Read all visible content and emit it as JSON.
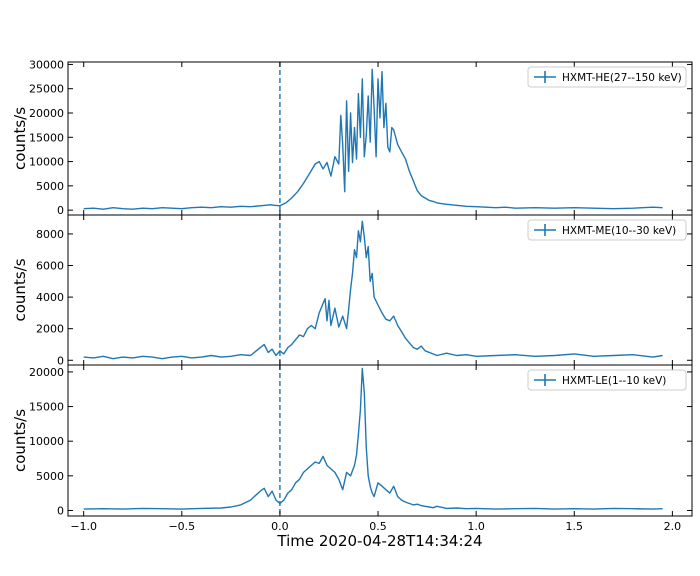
{
  "chart_data": {
    "type": "line",
    "xlabel": "Time 2020-04-28T14:34:24",
    "xlim": [
      -1.08,
      2.1
    ],
    "xticks": [
      "−1.0",
      "−0.5",
      "0.0",
      "0.5",
      "1.0",
      "1.5",
      "2.0"
    ],
    "xtick_values": [
      -1.0,
      -0.5,
      0.0,
      0.5,
      1.0,
      1.5,
      2.0
    ],
    "trigger_line_x": 0.0,
    "color": "#1f77b4",
    "panels": [
      {
        "ylabel": "counts/s",
        "ylim": [
          -1000,
          30500
        ],
        "yticks": [
          0,
          5000,
          10000,
          15000,
          20000,
          25000,
          30000
        ],
        "legend": "HXMT-HE(27--150 keV)",
        "legend_position": "upper right",
        "series": {
          "x": [
            -1.0,
            -0.95,
            -0.9,
            -0.85,
            -0.8,
            -0.75,
            -0.7,
            -0.65,
            -0.6,
            -0.55,
            -0.5,
            -0.45,
            -0.4,
            -0.35,
            -0.3,
            -0.25,
            -0.2,
            -0.15,
            -0.1,
            -0.05,
            0.0,
            0.03,
            0.06,
            0.09,
            0.12,
            0.15,
            0.18,
            0.2,
            0.22,
            0.24,
            0.26,
            0.28,
            0.3,
            0.31,
            0.32,
            0.33,
            0.34,
            0.35,
            0.36,
            0.37,
            0.38,
            0.39,
            0.4,
            0.41,
            0.42,
            0.43,
            0.44,
            0.45,
            0.46,
            0.47,
            0.48,
            0.49,
            0.5,
            0.51,
            0.52,
            0.53,
            0.54,
            0.55,
            0.56,
            0.57,
            0.58,
            0.6,
            0.62,
            0.64,
            0.66,
            0.68,
            0.7,
            0.72,
            0.74,
            0.76,
            0.78,
            0.8,
            0.85,
            0.9,
            0.95,
            1.0,
            1.05,
            1.1,
            1.15,
            1.2,
            1.3,
            1.4,
            1.5,
            1.6,
            1.7,
            1.8,
            1.9,
            1.95
          ],
          "y": [
            300,
            400,
            200,
            500,
            300,
            200,
            400,
            300,
            500,
            400,
            300,
            500,
            600,
            500,
            700,
            600,
            800,
            700,
            900,
            1100,
            900,
            1500,
            2500,
            3800,
            5500,
            7500,
            9500,
            10000,
            8500,
            9800,
            7000,
            11000,
            9500,
            19500,
            13500,
            3800,
            22500,
            8000,
            20000,
            9800,
            17000,
            10500,
            24000,
            15000,
            27000,
            11000,
            15500,
            23500,
            14000,
            29000,
            21000,
            11000,
            27000,
            19000,
            28500,
            17000,
            22000,
            13000,
            12000,
            17000,
            16500,
            13500,
            12000,
            10500,
            8000,
            6000,
            4000,
            3000,
            2500,
            2000,
            1800,
            1500,
            1200,
            1000,
            800,
            700,
            600,
            500,
            600,
            400,
            500,
            400,
            500,
            400,
            300,
            400,
            600,
            500
          ]
        }
      },
      {
        "ylabel": "counts/s",
        "ylim": [
          -300,
          9200
        ],
        "yticks": [
          0,
          2000,
          4000,
          6000,
          8000
        ],
        "legend": "HXMT-ME(10--30 keV)",
        "legend_position": "upper right",
        "series": {
          "x": [
            -1.0,
            -0.95,
            -0.9,
            -0.85,
            -0.8,
            -0.75,
            -0.7,
            -0.65,
            -0.6,
            -0.55,
            -0.5,
            -0.45,
            -0.4,
            -0.35,
            -0.3,
            -0.25,
            -0.2,
            -0.15,
            -0.1,
            -0.08,
            -0.06,
            -0.04,
            -0.02,
            0.0,
            0.02,
            0.04,
            0.06,
            0.08,
            0.1,
            0.12,
            0.14,
            0.16,
            0.18,
            0.2,
            0.22,
            0.23,
            0.24,
            0.25,
            0.26,
            0.28,
            0.3,
            0.32,
            0.34,
            0.35,
            0.36,
            0.37,
            0.38,
            0.39,
            0.4,
            0.41,
            0.42,
            0.43,
            0.44,
            0.45,
            0.46,
            0.47,
            0.48,
            0.5,
            0.52,
            0.54,
            0.56,
            0.58,
            0.6,
            0.62,
            0.64,
            0.66,
            0.68,
            0.7,
            0.72,
            0.74,
            0.76,
            0.78,
            0.8,
            0.85,
            0.9,
            0.95,
            1.0,
            1.1,
            1.2,
            1.3,
            1.4,
            1.5,
            1.6,
            1.7,
            1.8,
            1.9,
            1.95
          ],
          "y": [
            200,
            150,
            250,
            100,
            200,
            150,
            250,
            200,
            100,
            200,
            250,
            150,
            200,
            300,
            200,
            250,
            350,
            300,
            800,
            1000,
            500,
            700,
            300,
            600,
            400,
            800,
            1000,
            1300,
            1600,
            1500,
            2000,
            2200,
            2000,
            3000,
            3600,
            3900,
            2500,
            3800,
            2200,
            3300,
            2100,
            2800,
            2000,
            3200,
            4500,
            5500,
            7000,
            6500,
            8200,
            7500,
            8800,
            7800,
            6500,
            7200,
            5000,
            5500,
            4000,
            3500,
            3000,
            2600,
            2500,
            2800,
            2200,
            1800,
            1400,
            1100,
            800,
            700,
            900,
            600,
            500,
            400,
            300,
            450,
            300,
            350,
            250,
            300,
            350,
            250,
            300,
            400,
            250,
            300,
            350,
            200,
            300
          ]
        }
      },
      {
        "ylabel": "counts/s",
        "ylim": [
          -800,
          21000
        ],
        "yticks": [
          0,
          5000,
          10000,
          15000,
          20000
        ],
        "legend": "HXMT-LE(1--10 keV)",
        "legend_position": "upper right",
        "series": {
          "x": [
            -1.0,
            -0.9,
            -0.8,
            -0.7,
            -0.6,
            -0.5,
            -0.4,
            -0.3,
            -0.25,
            -0.2,
            -0.15,
            -0.1,
            -0.08,
            -0.06,
            -0.04,
            -0.02,
            0.0,
            0.02,
            0.04,
            0.06,
            0.08,
            0.1,
            0.12,
            0.14,
            0.16,
            0.18,
            0.2,
            0.22,
            0.24,
            0.26,
            0.28,
            0.3,
            0.32,
            0.34,
            0.36,
            0.38,
            0.39,
            0.4,
            0.41,
            0.42,
            0.43,
            0.44,
            0.45,
            0.46,
            0.47,
            0.48,
            0.5,
            0.52,
            0.54,
            0.56,
            0.58,
            0.6,
            0.62,
            0.64,
            0.66,
            0.68,
            0.7,
            0.72,
            0.74,
            0.76,
            0.78,
            0.8,
            0.85,
            0.9,
            0.95,
            1.0,
            1.1,
            1.2,
            1.3,
            1.4,
            1.5,
            1.6,
            1.7,
            1.8,
            1.9,
            1.95
          ],
          "y": [
            200,
            250,
            200,
            300,
            250,
            200,
            300,
            350,
            500,
            800,
            1500,
            2800,
            3200,
            2000,
            2800,
            1500,
            1000,
            1500,
            2500,
            3000,
            4000,
            4500,
            5500,
            6000,
            6500,
            7000,
            6800,
            7800,
            6500,
            6000,
            5500,
            4500,
            3000,
            5500,
            5000,
            6500,
            8000,
            11000,
            14500,
            20500,
            17000,
            9000,
            5000,
            3500,
            2500,
            2000,
            4000,
            3500,
            3000,
            2500,
            3500,
            2000,
            1500,
            1200,
            1000,
            800,
            900,
            700,
            600,
            500,
            400,
            600,
            300,
            350,
            250,
            300,
            200,
            250,
            300,
            200,
            250,
            200,
            300,
            250,
            200,
            250
          ]
        }
      }
    ]
  }
}
